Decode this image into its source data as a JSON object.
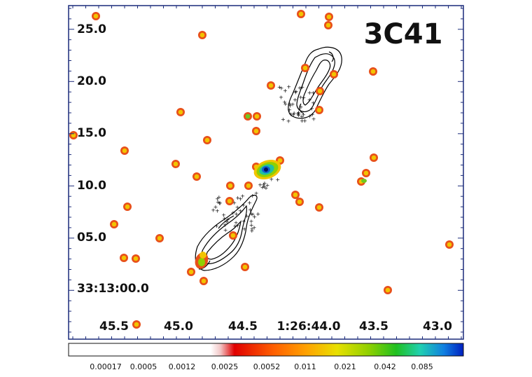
{
  "image": {
    "object_label": "3C41",
    "y_tick_labels": [
      "25.0",
      "20.0",
      "15.0",
      "10.0",
      "05.0",
      "33:13:00.0"
    ],
    "x_tick_labels": [
      "45.5",
      "45.0",
      "44.5",
      "1:26:44.0",
      "43.5",
      "43.0"
    ],
    "colorbar": {
      "tick_labels": [
        "0.00017",
        "0.0005",
        "0.0012",
        "0.0025",
        "0.0052",
        "0.011",
        "0.021",
        "0.042",
        "0.085"
      ],
      "colors": [
        "#ffffff",
        "#f2c6c6",
        "#e00000",
        "#ff6000",
        "#ffa000",
        "#e8e000",
        "#90d000",
        "#20c020",
        "#20d0b0",
        "#1080e0",
        "#0020c0"
      ]
    },
    "colors": {
      "frame": "#1a2a7a",
      "source_outer": "#e8501a",
      "source_inner": "#f2c400",
      "contour": "#000000"
    }
  }
}
